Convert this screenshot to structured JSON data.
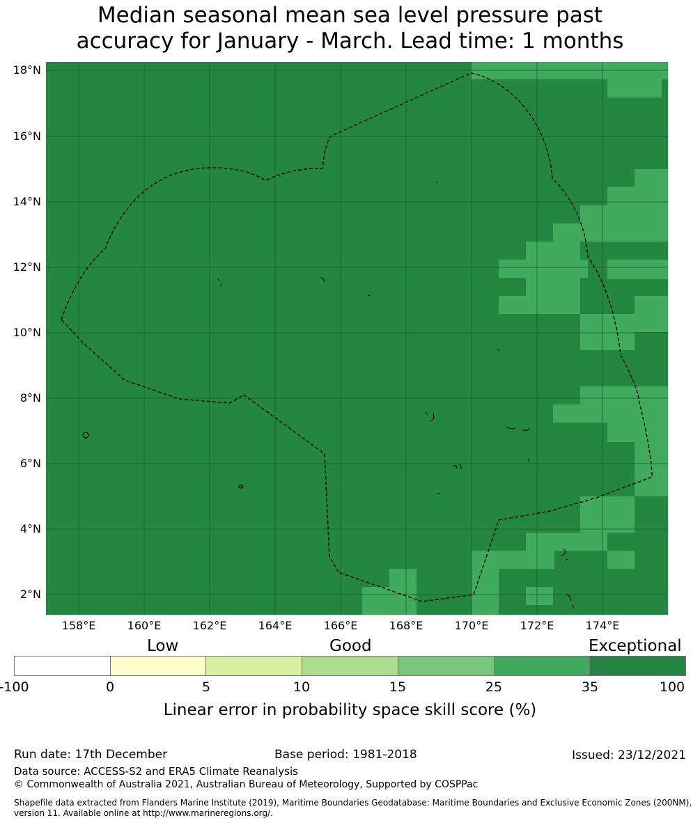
{
  "title": {
    "line1": "Median seasonal mean sea level pressure past",
    "line2": "accuracy for January - March. Lead time: 1 months"
  },
  "map": {
    "lat_labels": [
      "18°N",
      "16°N",
      "14°N",
      "12°N",
      "10°N",
      "8°N",
      "6°N",
      "4°N",
      "2°N"
    ],
    "lon_labels": [
      "158°E",
      "160°E",
      "162°E",
      "164°E",
      "166°E",
      "168°E",
      "170°E",
      "172°E",
      "174°E"
    ],
    "base_color": "#24873f",
    "good_color": "#41ab5d",
    "grid_color": "#1a5e2c",
    "boundary_style": "dashed black line (EEZ boundary)"
  },
  "legend": {
    "categories": [
      "Low",
      "Good",
      "Exceptional"
    ],
    "ticks": [
      "-100",
      "0",
      "5",
      "10",
      "15",
      "25",
      "35",
      "100"
    ],
    "colors": [
      "#ffffff",
      "#ffffcc",
      "#d9f0a3",
      "#addd8e",
      "#78c679",
      "#41ab5d",
      "#238443"
    ],
    "label": "Linear error in probability space skill score (%)"
  },
  "footer": {
    "run_date": "Run date: 17th December",
    "base_period": "Base period: 1981-2018",
    "issued": "Issued: 23/12/2021",
    "data_source": "Data source: ACCESS-S2 and ERA5 Climate Reanalysis",
    "copyright": "© Commonwealth of Australia 2021, Australian Bureau of Meteorology, Supported by COSPPac",
    "shapefile": "Shapefile data extracted from Flanders Marine Institute (2019), Maritime Boundaries Geodatabase: Maritime Boundaries and Exclusive Economic Zones (200NM), version 11. Available online at http://www.marineregions.org/."
  }
}
